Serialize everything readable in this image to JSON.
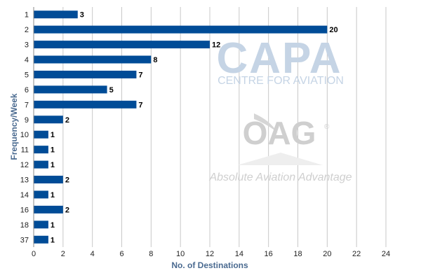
{
  "chart_data": {
    "type": "bar",
    "orientation": "horizontal",
    "categories": [
      "1",
      "2",
      "3",
      "4",
      "5",
      "6",
      "7",
      "9",
      "10",
      "11",
      "12",
      "13",
      "14",
      "16",
      "18",
      "37"
    ],
    "values": [
      3,
      20,
      12,
      8,
      7,
      5,
      7,
      2,
      1,
      1,
      1,
      2,
      1,
      2,
      1,
      1
    ],
    "title": "",
    "xlabel": "No. of Destinations",
    "ylabel": "Frequency/Week",
    "xlim": [
      0,
      24
    ],
    "x_ticks": [
      0,
      2,
      4,
      6,
      8,
      10,
      12,
      14,
      16,
      18,
      20,
      22,
      24
    ],
    "grid": "vertical",
    "bar_color": "#004c97",
    "data_labels": true,
    "legend": "none"
  },
  "watermarks": {
    "capa": {
      "text": "CAPA",
      "subtitle": "CENTRE FOR AVIATION",
      "color": "#c5d4e5"
    },
    "oag": {
      "text": "OAG",
      "registered": "®",
      "tagline": "Absolute Aviation Advantage",
      "color": "#cfcfcf"
    }
  },
  "colors": {
    "axis_title": "#4a6a90",
    "gridline": "#c8c8c8",
    "tick_label": "#222222"
  }
}
